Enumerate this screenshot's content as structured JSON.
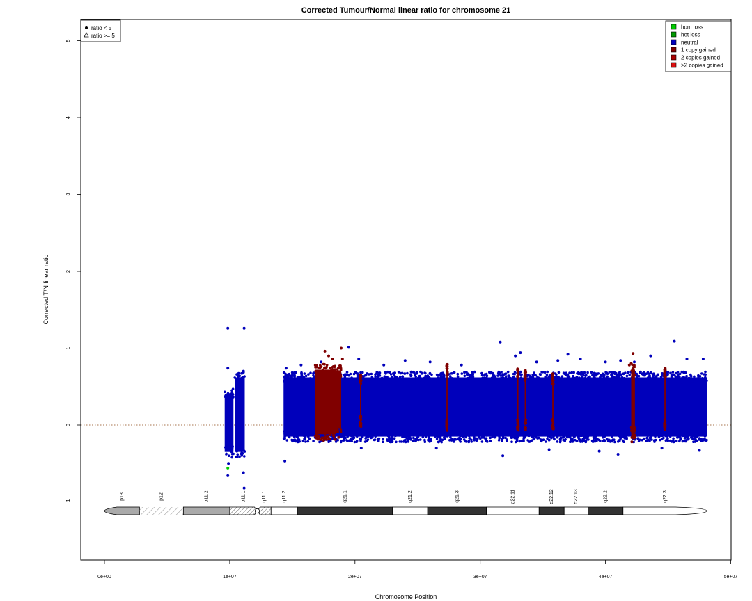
{
  "chart_data": {
    "type": "scatter",
    "title": "Corrected Tumour/Normal linear ratio for chromosome  21",
    "xlabel": "Chromosome Position",
    "ylabel": "Corrected T/N linear ratio",
    "xlim": [
      -2000000,
      50000000
    ],
    "ylim": [
      -1.8,
      5.25
    ],
    "x_ticks": [
      {
        "value": 0,
        "label": "0e+00"
      },
      {
        "value": 10000000,
        "label": "1e+07"
      },
      {
        "value": 20000000,
        "label": "2e+07"
      },
      {
        "value": 30000000,
        "label": "3e+07"
      },
      {
        "value": 40000000,
        "label": "4e+07"
      },
      {
        "value": 50000000,
        "label": "5e+07"
      }
    ],
    "y_ticks": [
      {
        "value": -1,
        "label": "−1"
      },
      {
        "value": 0,
        "label": "0"
      },
      {
        "value": 1,
        "label": "1"
      },
      {
        "value": 2,
        "label": "2"
      },
      {
        "value": 3,
        "label": "3"
      },
      {
        "value": 4,
        "label": "4"
      },
      {
        "value": 5,
        "label": "5"
      }
    ],
    "reference_line": {
      "y": 0,
      "style": "dotted",
      "color": "#8b4513"
    },
    "shape_legend": {
      "placement": "top-left",
      "entries": [
        {
          "symbol": "dot",
          "label": "ratio < 5"
        },
        {
          "symbol": "triangle",
          "label": "ratio >= 5"
        }
      ]
    },
    "legend": {
      "placement": "top-right",
      "entries": [
        {
          "label": "hom loss",
          "color": "#00cc00"
        },
        {
          "label": "het loss",
          "color": "#009900"
        },
        {
          "label": "neutral",
          "color": "#0000bb"
        },
        {
          "label": "1 copy gained",
          "color": "#800000"
        },
        {
          "label": "2 copies gained",
          "color": "#aa0000"
        },
        {
          "label": ">2 copies gained",
          "color": "#dd1111"
        }
      ]
    },
    "series": [
      {
        "name": "neutral",
        "color": "#0000bb",
        "dense_regions": [
          {
            "x_start": 9600000,
            "x_end": 10300000,
            "y_low": -0.35,
            "y_high": 0.4
          },
          {
            "x_start": 10400000,
            "x_end": 11200000,
            "y_low": -0.35,
            "y_high": 0.62
          },
          {
            "x_start": 14300000,
            "x_end": 48100000,
            "y_low": -0.15,
            "y_high": 0.62
          }
        ],
        "points": [
          [
            9850000,
            1.26
          ],
          [
            11150000,
            1.26
          ],
          [
            9850000,
            0.74
          ],
          [
            11100000,
            0.7
          ],
          [
            9850000,
            -0.66
          ],
          [
            11150000,
            -0.82
          ],
          [
            11100000,
            -0.62
          ],
          [
            9900000,
            -0.5
          ],
          [
            14400000,
            -0.47
          ],
          [
            14500000,
            0.74
          ],
          [
            15700000,
            0.78
          ],
          [
            17300000,
            0.82
          ],
          [
            19500000,
            1.01
          ],
          [
            20300000,
            0.86
          ],
          [
            22300000,
            0.78
          ],
          [
            24000000,
            0.84
          ],
          [
            26000000,
            0.82
          ],
          [
            28500000,
            0.78
          ],
          [
            31600000,
            1.08
          ],
          [
            32800000,
            0.9
          ],
          [
            33200000,
            0.94
          ],
          [
            34500000,
            0.82
          ],
          [
            36200000,
            0.84
          ],
          [
            37000000,
            0.92
          ],
          [
            38000000,
            0.86
          ],
          [
            40000000,
            0.82
          ],
          [
            41200000,
            0.84
          ],
          [
            42300000,
            0.82
          ],
          [
            43600000,
            0.9
          ],
          [
            45500000,
            1.09
          ],
          [
            46500000,
            0.86
          ],
          [
            47800000,
            0.86
          ],
          [
            31800000,
            -0.4
          ],
          [
            41000000,
            -0.38
          ],
          [
            26500000,
            -0.3
          ],
          [
            35500000,
            -0.32
          ],
          [
            39500000,
            -0.34
          ],
          [
            47500000,
            -0.33
          ],
          [
            20500000,
            -0.3
          ],
          [
            44500000,
            -0.3
          ]
        ]
      },
      {
        "name": "1 copy gained",
        "color": "#800000",
        "dense_regions": [
          {
            "x_start": 16800000,
            "x_end": 18500000,
            "y_low": -0.12,
            "y_high": 0.72
          },
          {
            "x_start": 18500000,
            "x_end": 18900000,
            "y_low": -0.05,
            "y_high": 0.7
          },
          {
            "x_start": 42050000,
            "x_end": 42350000,
            "y_low": -0.1,
            "y_high": 0.72
          },
          {
            "x_start": 27300000,
            "x_end": 27400000,
            "y_low": 0.0,
            "y_high": 0.72
          },
          {
            "x_start": 32950000,
            "x_end": 33050000,
            "y_low": 0.0,
            "y_high": 0.68
          },
          {
            "x_start": 33550000,
            "x_end": 33650000,
            "y_low": 0.0,
            "y_high": 0.65
          },
          {
            "x_start": 35750000,
            "x_end": 35850000,
            "y_low": 0.0,
            "y_high": 0.6
          },
          {
            "x_start": 44700000,
            "x_end": 44800000,
            "y_low": 0.0,
            "y_high": 0.68
          },
          {
            "x_start": 20400000,
            "x_end": 20500000,
            "y_low": 0.05,
            "y_high": 0.6
          }
        ],
        "points": [
          [
            17600000,
            0.96
          ],
          [
            17900000,
            0.9
          ],
          [
            18200000,
            0.86
          ],
          [
            18900000,
            1.0
          ],
          [
            19000000,
            0.86
          ],
          [
            17500000,
            -0.2
          ],
          [
            18700000,
            -0.16
          ],
          [
            42100000,
            -0.22
          ],
          [
            42200000,
            0.93
          ],
          [
            42050000,
            0.8
          ],
          [
            41900000,
            0.78
          ]
        ]
      },
      {
        "name": "het loss",
        "color": "#00cc00",
        "points": [
          [
            9850000,
            -0.56
          ]
        ]
      }
    ],
    "ideogram": {
      "bands": [
        {
          "label": "p13",
          "start": 0,
          "end": 2800000,
          "style": "gray-arm"
        },
        {
          "label": "p12",
          "start": 2800000,
          "end": 6300000,
          "style": "hatch"
        },
        {
          "label": "p11.2",
          "start": 6300000,
          "end": 10000000,
          "style": "gray"
        },
        {
          "label": "p11.1",
          "start": 10000000,
          "end": 12200000,
          "style": "hatch-cen"
        },
        {
          "label": "q11.1",
          "start": 12200000,
          "end": 13300000,
          "style": "hatch-cen"
        },
        {
          "label": "q11.2",
          "start": 13300000,
          "end": 15400000,
          "style": "white"
        },
        {
          "label": "q21.1",
          "start": 15400000,
          "end": 23000000,
          "style": "dark"
        },
        {
          "label": "q21.2",
          "start": 23000000,
          "end": 25800000,
          "style": "white"
        },
        {
          "label": "q21.3",
          "start": 25800000,
          "end": 30500000,
          "style": "dark"
        },
        {
          "label": "q22.11",
          "start": 30500000,
          "end": 34700000,
          "style": "white"
        },
        {
          "label": "q22.12",
          "start": 34700000,
          "end": 36700000,
          "style": "dark"
        },
        {
          "label": "q22.13",
          "start": 36700000,
          "end": 38600000,
          "style": "white"
        },
        {
          "label": "q22.2",
          "start": 38600000,
          "end": 41400000,
          "style": "dark"
        },
        {
          "label": "q22.3",
          "start": 41400000,
          "end": 48100000,
          "style": "white-end"
        }
      ]
    }
  }
}
